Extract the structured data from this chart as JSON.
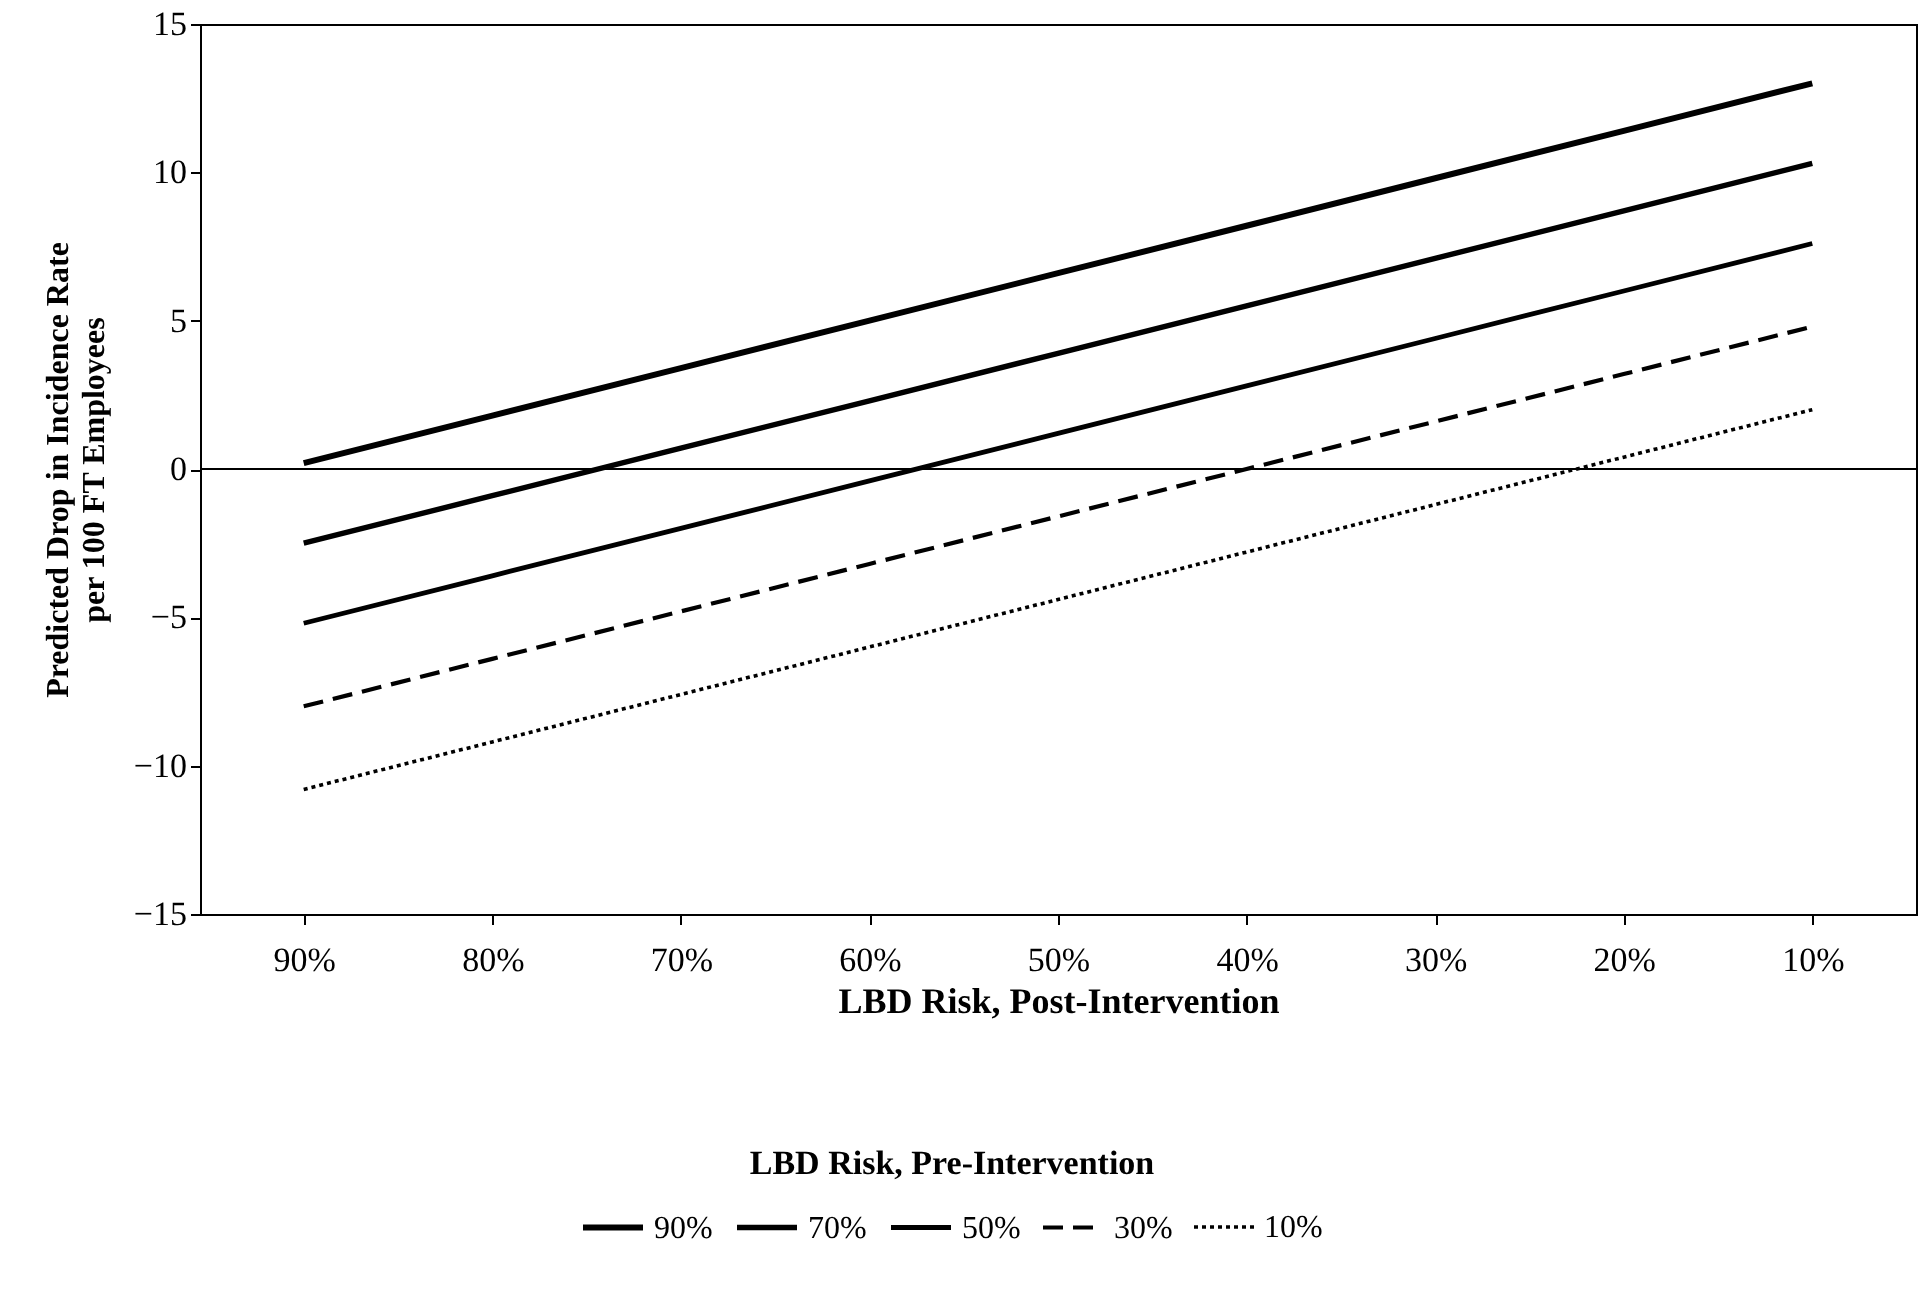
{
  "chart_data": {
    "type": "line",
    "xlabel": "LBD Risk, Post-Intervention",
    "ylabel": "Predicted Drop in Incidence Rate\nper 100 FT Employees",
    "legend_title": "LBD Risk, Pre-Intervention",
    "categories": [
      "90%",
      "80%",
      "70%",
      "60%",
      "50%",
      "40%",
      "30%",
      "20%",
      "10%"
    ],
    "ylim": [
      -15,
      15
    ],
    "yticks": [
      -15,
      -10,
      -5,
      0,
      5,
      10,
      15
    ],
    "grid": false,
    "legend": "bottom",
    "marker": "none",
    "ref_lines": [
      {
        "axis": "y",
        "value": 0,
        "color": "#000000",
        "line_style": "solid"
      }
    ],
    "series": [
      {
        "name": "90%",
        "color": "#000000",
        "line_style": "solid",
        "values": [
          0.2,
          1.8,
          3.4,
          5.0,
          6.6,
          8.2,
          9.8,
          11.4,
          13.0
        ]
      },
      {
        "name": "70%",
        "color": "#000000",
        "line_style": "solid",
        "values": [
          -2.5,
          -0.9,
          0.7,
          2.3,
          3.9,
          5.5,
          7.1,
          8.7,
          10.3
        ]
      },
      {
        "name": "50%",
        "color": "#000000",
        "line_style": "solid",
        "values": [
          -5.2,
          -3.6,
          -2.0,
          -0.4,
          1.2,
          2.8,
          4.4,
          6.0,
          7.6
        ]
      },
      {
        "name": "30%",
        "color": "#000000",
        "line_style": "dashed",
        "values": [
          -8.0,
          -6.4,
          -4.8,
          -3.2,
          -1.6,
          0.0,
          1.6,
          3.2,
          4.8
        ]
      },
      {
        "name": "10%",
        "color": "#000000",
        "line_style": "dotted",
        "values": [
          -10.8,
          -9.2,
          -7.6,
          -6.0,
          -4.4,
          -2.8,
          -1.2,
          0.4,
          2.0
        ]
      }
    ]
  }
}
